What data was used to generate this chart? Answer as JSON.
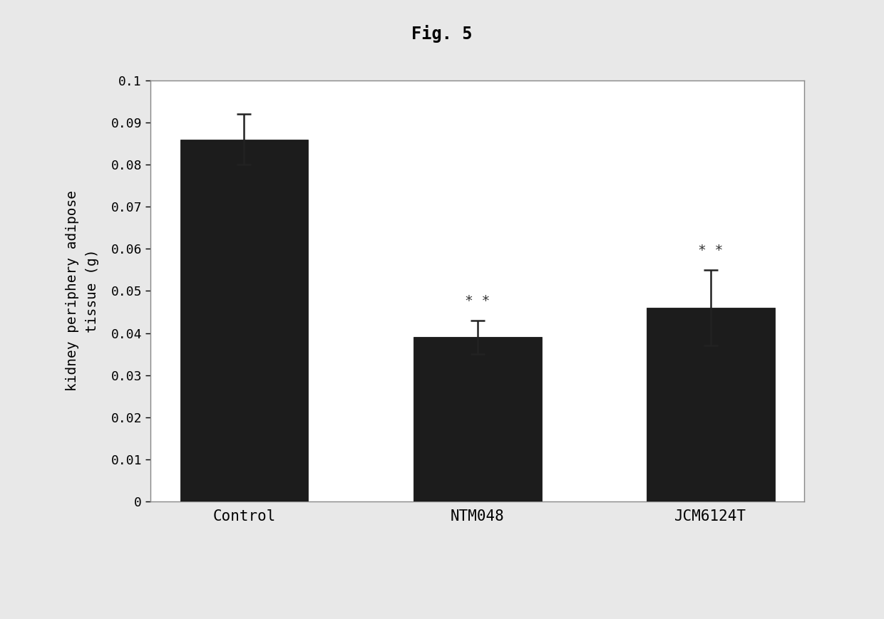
{
  "title": "Fig. 5",
  "ylabel": "kidney periphery adipose\ntissue (g)",
  "categories": [
    "Control",
    "NTM048",
    "JCM6124T"
  ],
  "values": [
    0.086,
    0.039,
    0.046
  ],
  "errors": [
    0.006,
    0.004,
    0.009
  ],
  "bar_color": "#1c1c1c",
  "ylim": [
    0,
    0.1
  ],
  "yticks": [
    0,
    0.01,
    0.02,
    0.03,
    0.04,
    0.05,
    0.06,
    0.07,
    0.08,
    0.09,
    0.1
  ],
  "ytick_labels": [
    "0",
    "0.01",
    "0.02",
    "0.03",
    "0.04",
    "0.05",
    "0.06",
    "0.07",
    "0.08",
    "0.09",
    "0.1"
  ],
  "significance": [
    null,
    "* *",
    "* *"
  ],
  "figure_bg": "#e8e8e8",
  "plot_bg": "#ffffff",
  "title_fontsize": 17,
  "label_fontsize": 14,
  "tick_fontsize": 13,
  "sig_fontsize": 14,
  "xtick_fontsize": 15
}
